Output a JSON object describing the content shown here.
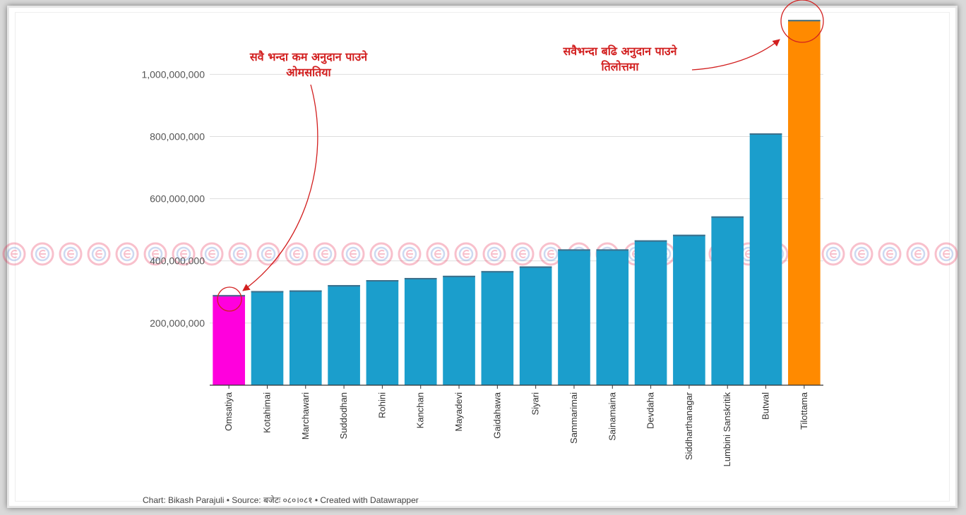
{
  "chart_data": {
    "type": "bar",
    "categories": [
      "Omsatiya",
      "Kotahimai",
      "Marchawari",
      "Suddodhan",
      "Rohini",
      "Kanchan",
      "Mayadevi",
      "Gaidahawa",
      "Siyari",
      "Sammarimai",
      "Sainamaina",
      "Devdaha",
      "Siddharthanagar",
      "Lumbini Sanskritik",
      "Butwal",
      "Tilottama"
    ],
    "values": [
      290000000,
      303000000,
      305000000,
      322000000,
      338000000,
      345000000,
      352000000,
      367000000,
      382000000,
      437000000,
      437000000,
      466000000,
      484000000,
      543000000,
      810000000,
      1175000000
    ],
    "bar_colors": [
      "#ff00dd",
      "#1b9ecc",
      "#1b9ecc",
      "#1b9ecc",
      "#1b9ecc",
      "#1b9ecc",
      "#1b9ecc",
      "#1b9ecc",
      "#1b9ecc",
      "#1b9ecc",
      "#1b9ecc",
      "#1b9ecc",
      "#1b9ecc",
      "#1b9ecc",
      "#1b9ecc",
      "#ff8a00"
    ],
    "ylim": [
      0,
      1180000000
    ],
    "yticks": [
      200000000,
      400000000,
      600000000,
      800000000,
      1000000000
    ],
    "ytick_labels": [
      "200,000,000",
      "400,000,000",
      "600,000,000",
      "800,000,000",
      "1,000,000,000"
    ],
    "xlabel": "",
    "ylabel": "",
    "grid": true
  },
  "annotations": {
    "lowest": {
      "line1": "सवै भन्दा कम अनुदान पाउने",
      "line2": "ओमसतिया"
    },
    "highest": {
      "line1": "सवैभन्दा बढि अनुदान पाउने",
      "line2": "तिलोत्तमा"
    },
    "color": "#d21f1f"
  },
  "footer": "Chart: Bikash Parajuli • Source: बजेटः ०८०।०८१ • Created with Datawrapper",
  "colors": {
    "primary_bar": "#1b9ecc",
    "min_bar": "#ff00dd",
    "max_bar": "#ff8a00",
    "watermark": "#e8204a"
  }
}
